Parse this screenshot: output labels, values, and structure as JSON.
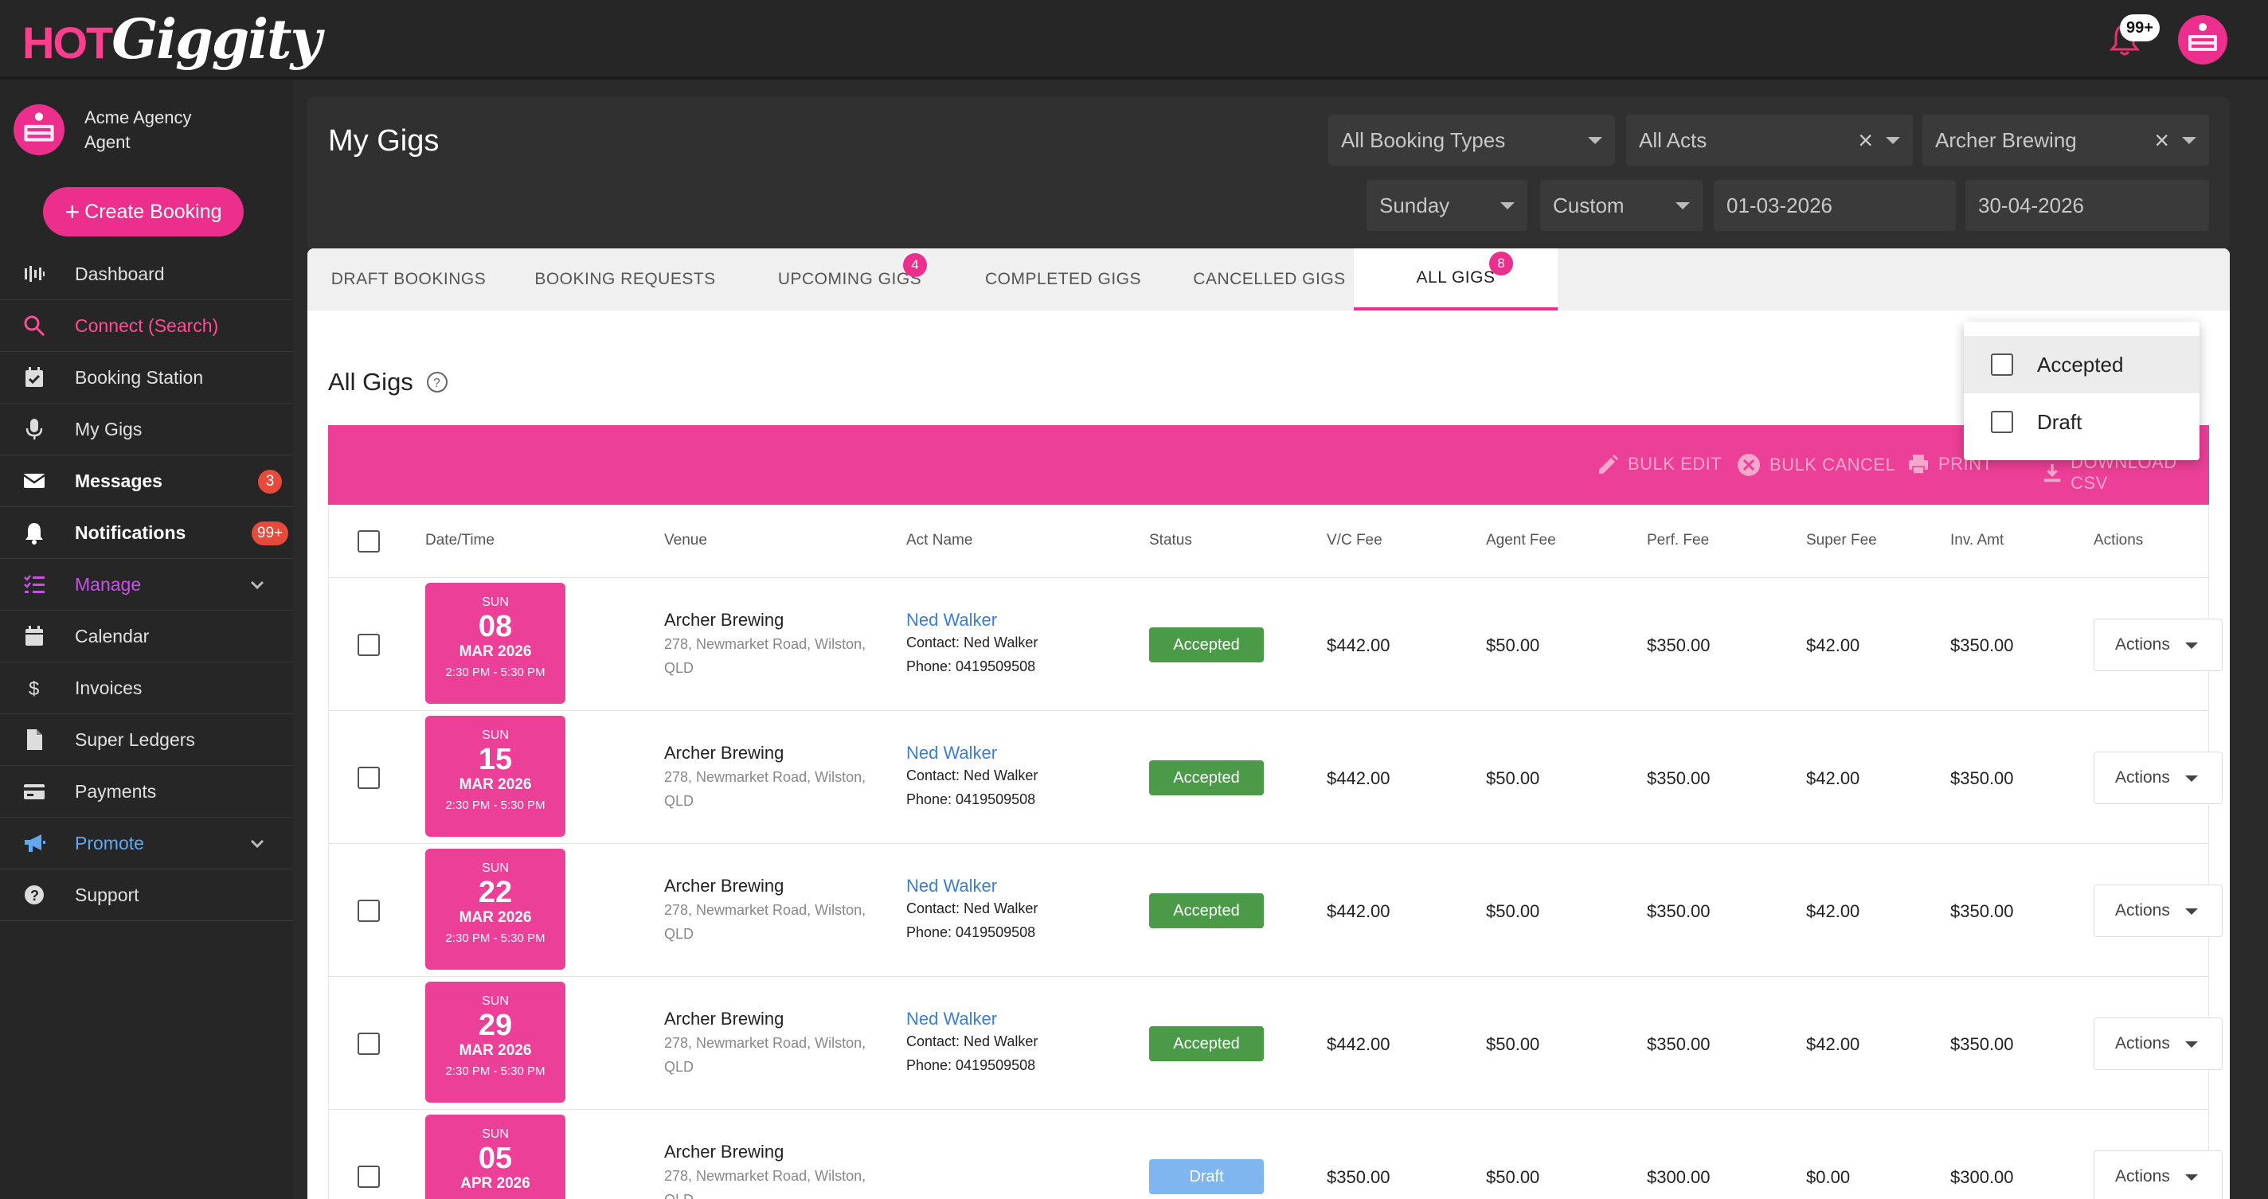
{
  "brand": {
    "logo_hot": "HOT",
    "logo_giggity": "Giggity"
  },
  "topbar": {
    "notifications_badge": "99+"
  },
  "user": {
    "name": "Acme Agency",
    "role": "Agent"
  },
  "sidebar": {
    "create_label": "Create Booking",
    "items": [
      {
        "label": "Dashboard"
      },
      {
        "label": "Connect (Search)"
      },
      {
        "label": "Booking Station"
      },
      {
        "label": "My Gigs"
      },
      {
        "label": "Messages",
        "badge": "3"
      },
      {
        "label": "Notifications",
        "badge": "99+"
      },
      {
        "label": "Manage"
      },
      {
        "label": "Calendar"
      },
      {
        "label": "Invoices"
      },
      {
        "label": "Super Ledgers"
      },
      {
        "label": "Payments"
      },
      {
        "label": "Promote"
      },
      {
        "label": "Support"
      }
    ]
  },
  "header": {
    "title": "My Gigs",
    "filters": {
      "booking_types": "All Booking Types",
      "acts": "All Acts",
      "venue": "Archer Brewing",
      "day": "Sunday",
      "range": "Custom",
      "date_from": "01-03-2026",
      "date_to": "30-04-2026"
    }
  },
  "tabs": [
    {
      "label": "DRAFT BOOKINGS"
    },
    {
      "label": "BOOKING REQUESTS"
    },
    {
      "label": "UPCOMING GIGS",
      "badge": "4"
    },
    {
      "label": "COMPLETED GIGS"
    },
    {
      "label": "CANCELLED GIGS"
    },
    {
      "label": "ALL GIGS",
      "badge": "8"
    }
  ],
  "section": {
    "title": "All Gigs"
  },
  "bulk_actions": {
    "edit": "BULK EDIT",
    "cancel": "BULK CANCEL",
    "print": "PRINT",
    "csv": "DOWNLOAD CSV"
  },
  "table": {
    "headers": [
      "Date/Time",
      "Venue",
      "Act Name",
      "Status",
      "V/C Fee",
      "Agent Fee",
      "Perf. Fee",
      "Super Fee",
      "Inv. Amt",
      "Actions"
    ],
    "rows": [
      {
        "dow": "SUN",
        "day": "08",
        "month": "MAR 2026",
        "time": "2:30 PM - 5:30 PM",
        "venue": "Archer Brewing",
        "address1": "278, Newmarket Road, Wilston,",
        "address2": "QLD",
        "act": "Ned Walker",
        "contact": "Contact: Ned Walker",
        "phone": "Phone: 0419509508",
        "status": "Accepted",
        "vc_fee": "$442.00",
        "agent_fee": "$50.00",
        "perf_fee": "$350.00",
        "super_fee": "$42.00",
        "inv_amt": "$350.00",
        "actions": "Actions"
      },
      {
        "dow": "SUN",
        "day": "15",
        "month": "MAR 2026",
        "time": "2:30 PM - 5:30 PM",
        "venue": "Archer Brewing",
        "address1": "278, Newmarket Road, Wilston,",
        "address2": "QLD",
        "act": "Ned Walker",
        "contact": "Contact: Ned Walker",
        "phone": "Phone: 0419509508",
        "status": "Accepted",
        "vc_fee": "$442.00",
        "agent_fee": "$50.00",
        "perf_fee": "$350.00",
        "super_fee": "$42.00",
        "inv_amt": "$350.00",
        "actions": "Actions"
      },
      {
        "dow": "SUN",
        "day": "22",
        "month": "MAR 2026",
        "time": "2:30 PM - 5:30 PM",
        "venue": "Archer Brewing",
        "address1": "278, Newmarket Road, Wilston,",
        "address2": "QLD",
        "act": "Ned Walker",
        "contact": "Contact: Ned Walker",
        "phone": "Phone: 0419509508",
        "status": "Accepted",
        "vc_fee": "$442.00",
        "agent_fee": "$50.00",
        "perf_fee": "$350.00",
        "super_fee": "$42.00",
        "inv_amt": "$350.00",
        "actions": "Actions"
      },
      {
        "dow": "SUN",
        "day": "29",
        "month": "MAR 2026",
        "time": "2:30 PM - 5:30 PM",
        "venue": "Archer Brewing",
        "address1": "278, Newmarket Road, Wilston,",
        "address2": "QLD",
        "act": "Ned Walker",
        "contact": "Contact: Ned Walker",
        "phone": "Phone: 0419509508",
        "status": "Accepted",
        "vc_fee": "$442.00",
        "agent_fee": "$50.00",
        "perf_fee": "$350.00",
        "super_fee": "$42.00",
        "inv_amt": "$350.00",
        "actions": "Actions"
      },
      {
        "dow": "SUN",
        "day": "05",
        "month": "APR 2026",
        "time": "",
        "venue": "Archer Brewing",
        "address1": "278, Newmarket Road, Wilston,",
        "address2": "QLD",
        "act": "",
        "contact": "",
        "phone": "",
        "status": "Draft",
        "vc_fee": "$350.00",
        "agent_fee": "$50.00",
        "perf_fee": "$300.00",
        "super_fee": "$0.00",
        "inv_amt": "$300.00",
        "actions": "Actions"
      }
    ]
  },
  "status_popup": {
    "options": [
      "Accepted",
      "Draft"
    ]
  },
  "colors": {
    "accent": "#ec2e8c",
    "accepted": "#4a9a48",
    "draft": "#7fb6ef",
    "link": "#3b7fd0"
  }
}
